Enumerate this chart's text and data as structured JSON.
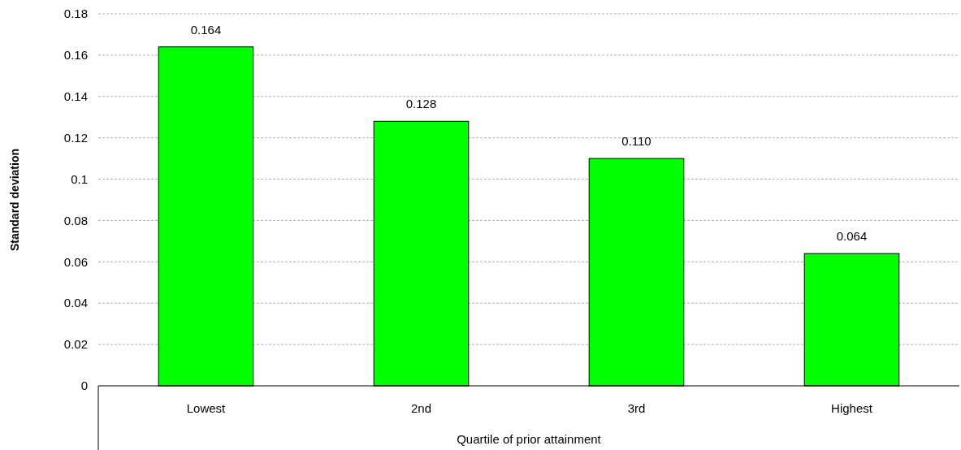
{
  "chart_data": {
    "type": "bar",
    "xlabel": "Quartile of prior attainment",
    "ylabel": "Standard deviation",
    "categories": [
      "Lowest",
      "2nd",
      "3rd",
      "Highest"
    ],
    "values": [
      0.164,
      0.128,
      0.11,
      0.064
    ],
    "value_labels": [
      "0.164",
      "0.128",
      "0.110",
      "0.064"
    ],
    "color": "#00ff00",
    "ylim": [
      0,
      0.18
    ],
    "yticks": [
      0,
      0.02,
      0.04,
      0.06,
      0.08,
      {
        "value": 0.1,
        "label": "0.1"
      },
      0.12,
      0.14,
      0.16,
      0.18
    ],
    "grid": "y"
  }
}
